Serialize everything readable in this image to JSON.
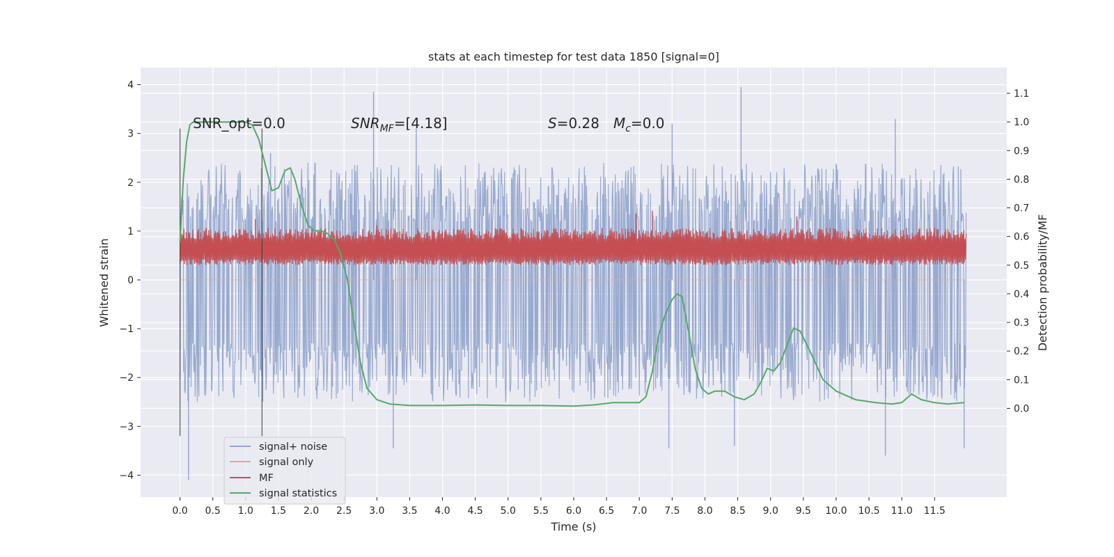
{
  "chart_data": {
    "type": "line",
    "title": "stats at each timestep for test data 1850 [signal=0]",
    "xlabel": "Time (s)",
    "ylabel": "Whitened strain",
    "ylabel_right": "Detection probability/MF",
    "xlim": [
      -0.6,
      12.6
    ],
    "ylim": [
      -4.45,
      4.35
    ],
    "ylim_right": [
      -0.31,
      1.19
    ],
    "x_ticks": [
      0.0,
      0.5,
      1.0,
      1.5,
      2.0,
      2.5,
      3.0,
      3.5,
      4.0,
      4.5,
      5.0,
      5.5,
      6.0,
      6.5,
      7.0,
      7.5,
      8.0,
      8.5,
      9.0,
      9.5,
      10.0,
      10.5,
      11.0,
      11.5
    ],
    "x_tick_labels": [
      "0.0",
      "0.5",
      "1.0",
      "1.5",
      "2.0",
      "2.5",
      "3.0",
      "3.5",
      "4.0",
      "4.5",
      "5.0",
      "5.5",
      "6.0",
      "6.5",
      "7.0",
      "7.5",
      "8.0",
      "8.5",
      "9.0",
      "9.5",
      "10.0",
      "10.5",
      "11.0",
      "11.5"
    ],
    "y_ticks": [
      -4,
      -3,
      -2,
      -1,
      0,
      1,
      2,
      3,
      4
    ],
    "y_tick_labels": [
      "−4",
      "−3",
      "−2",
      "−1",
      "0",
      "1",
      "2",
      "3",
      "4"
    ],
    "y_ticks_right": [
      0.0,
      0.1,
      0.2,
      0.3,
      0.4,
      0.5,
      0.6,
      0.7,
      0.8,
      0.9,
      1.0,
      1.1
    ],
    "y_tick_labels_right": [
      "0.0",
      "0.1",
      "0.2",
      "0.3",
      "0.4",
      "0.5",
      "0.6",
      "0.7",
      "0.8",
      "0.9",
      "1.0",
      "1.1"
    ],
    "grid": true,
    "legend_position": "lower-left",
    "annotations": {
      "snr_opt": "SNR_opt=0.0",
      "snr_mf_main": "SNR",
      "snr_mf_sub": "MF",
      "snr_mf_value": "=[4.18]",
      "s_symbol": "S",
      "s_value": "=0.28",
      "mc_symbol": "M",
      "mc_sub": "c",
      "mc_value": "=0.0"
    },
    "vertical_lines_x": [
      0.0,
      1.25
    ],
    "series": [
      {
        "name": "signal+ noise",
        "color": "#92a5cc",
        "axis": "left",
        "kind": "noise",
        "t_range": [
          0.0,
          11.98
        ],
        "band_low": [
          -1.3,
          -2.5
        ],
        "band_high": [
          1.2,
          2.4
        ],
        "peaks_high": [
          [
            1.38,
            2.6
          ],
          [
            2.95,
            3.85
          ],
          [
            8.55,
            3.95
          ],
          [
            3.6,
            3.1
          ],
          [
            7.5,
            3.2
          ],
          [
            10.9,
            3.3
          ]
        ],
        "peaks_low": [
          [
            0.13,
            -4.1
          ],
          [
            3.25,
            -3.45
          ],
          [
            7.45,
            -3.45
          ],
          [
            10.75,
            -3.6
          ],
          [
            11.95,
            -3.45
          ],
          [
            8.45,
            -3.4
          ]
        ]
      },
      {
        "name": "signal only",
        "color": "#e8a68c",
        "axis": "left",
        "kind": "zero",
        "t_range": [
          0.0,
          11.98
        ],
        "values": [
          0.0,
          0.0
        ]
      },
      {
        "name": "MF",
        "color": "#c44e52",
        "axis": "right",
        "kind": "band",
        "t_range": [
          0.0,
          11.98
        ],
        "band_low": [
          0.5,
          0.52
        ],
        "band_high": [
          0.59,
          0.63
        ],
        "peaks_high": [
          [
            7.2,
            0.69
          ],
          [
            6.95,
            0.68
          ],
          [
            9.4,
            0.67
          ],
          [
            1.15,
            0.66
          ],
          [
            3.0,
            0.64
          ]
        ]
      },
      {
        "name": "signal statistics",
        "color": "#55a868",
        "axis": "right",
        "kind": "line",
        "x": [
          0.0,
          0.05,
          0.1,
          0.15,
          0.2,
          0.3,
          0.45,
          0.6,
          0.8,
          1.0,
          1.1,
          1.2,
          1.3,
          1.4,
          1.5,
          1.6,
          1.68,
          1.75,
          1.85,
          1.95,
          2.05,
          2.15,
          2.25,
          2.35,
          2.45,
          2.55,
          2.65,
          2.75,
          2.85,
          3.0,
          3.2,
          3.5,
          4.0,
          4.5,
          5.0,
          5.5,
          6.0,
          6.3,
          6.6,
          7.0,
          7.1,
          7.2,
          7.3,
          7.4,
          7.5,
          7.58,
          7.65,
          7.75,
          7.85,
          7.95,
          8.05,
          8.15,
          8.3,
          8.45,
          8.6,
          8.75,
          8.85,
          8.95,
          9.05,
          9.15,
          9.25,
          9.35,
          9.45,
          9.6,
          9.8,
          10.0,
          10.3,
          10.6,
          10.85,
          11.0,
          11.15,
          11.3,
          11.5,
          11.7,
          11.95
        ],
        "values": [
          0.58,
          0.8,
          0.93,
          0.99,
          1.0,
          1.0,
          1.0,
          1.0,
          1.0,
          1.0,
          0.99,
          0.94,
          0.85,
          0.76,
          0.77,
          0.83,
          0.84,
          0.8,
          0.71,
          0.64,
          0.62,
          0.62,
          0.61,
          0.59,
          0.54,
          0.45,
          0.3,
          0.16,
          0.07,
          0.03,
          0.015,
          0.01,
          0.01,
          0.012,
          0.01,
          0.01,
          0.008,
          0.012,
          0.02,
          0.02,
          0.04,
          0.13,
          0.26,
          0.33,
          0.38,
          0.4,
          0.39,
          0.27,
          0.14,
          0.07,
          0.05,
          0.06,
          0.06,
          0.04,
          0.03,
          0.05,
          0.09,
          0.14,
          0.13,
          0.16,
          0.22,
          0.28,
          0.27,
          0.2,
          0.1,
          0.06,
          0.03,
          0.02,
          0.015,
          0.02,
          0.05,
          0.03,
          0.02,
          0.015,
          0.02
        ]
      }
    ]
  }
}
